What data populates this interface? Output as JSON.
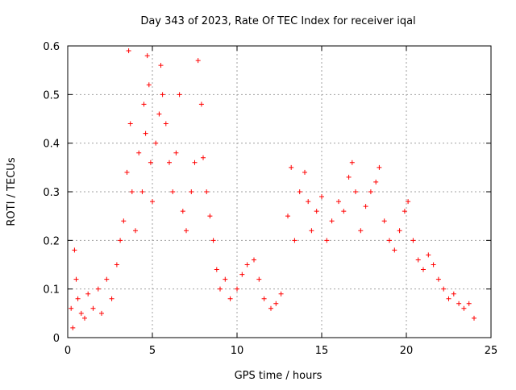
{
  "chart_data": {
    "type": "scatter",
    "title": "Day 343 of 2023, Rate Of TEC Index for receiver iqal",
    "xlabel": "GPS time / hours",
    "ylabel": "ROTI / TECUs",
    "xlim": [
      0,
      25
    ],
    "ylim": [
      0,
      0.6
    ],
    "xticks": [
      0,
      5,
      10,
      15,
      20,
      25
    ],
    "yticks": [
      0,
      0.1,
      0.2,
      0.3,
      0.4,
      0.5,
      0.6
    ],
    "xtick_labels": [
      "0",
      "5",
      "10",
      "15",
      "20",
      "25"
    ],
    "ytick_labels": [
      "0",
      "0.1",
      "0.2",
      "0.3",
      "0.4",
      "0.5",
      "0.6"
    ],
    "grid": true,
    "marker": "+",
    "series_color": "#ff0000",
    "series": [
      {
        "points": [
          [
            0.2,
            0.06
          ],
          [
            0.3,
            0.02
          ],
          [
            0.4,
            0.18
          ],
          [
            0.5,
            0.12
          ],
          [
            0.6,
            0.08
          ],
          [
            0.8,
            0.05
          ],
          [
            1.0,
            0.04
          ],
          [
            1.2,
            0.09
          ],
          [
            1.5,
            0.06
          ],
          [
            1.8,
            0.1
          ],
          [
            2.0,
            0.05
          ],
          [
            2.3,
            0.12
          ],
          [
            2.6,
            0.08
          ],
          [
            2.9,
            0.15
          ],
          [
            3.1,
            0.2
          ],
          [
            3.3,
            0.24
          ],
          [
            3.5,
            0.34
          ],
          [
            3.6,
            0.59
          ],
          [
            3.7,
            0.44
          ],
          [
            3.8,
            0.3
          ],
          [
            4.0,
            0.22
          ],
          [
            4.2,
            0.38
          ],
          [
            4.4,
            0.3
          ],
          [
            4.5,
            0.48
          ],
          [
            4.6,
            0.42
          ],
          [
            4.7,
            0.58
          ],
          [
            4.8,
            0.52
          ],
          [
            4.9,
            0.36
          ],
          [
            5.0,
            0.28
          ],
          [
            5.2,
            0.4
          ],
          [
            5.4,
            0.46
          ],
          [
            5.5,
            0.56
          ],
          [
            5.6,
            0.5
          ],
          [
            5.8,
            0.44
          ],
          [
            6.0,
            0.36
          ],
          [
            6.2,
            0.3
          ],
          [
            6.4,
            0.38
          ],
          [
            6.6,
            0.5
          ],
          [
            6.8,
            0.26
          ],
          [
            7.0,
            0.22
          ],
          [
            7.3,
            0.3
          ],
          [
            7.5,
            0.36
          ],
          [
            7.7,
            0.57
          ],
          [
            7.9,
            0.48
          ],
          [
            8.0,
            0.37
          ],
          [
            8.2,
            0.3
          ],
          [
            8.4,
            0.25
          ],
          [
            8.6,
            0.2
          ],
          [
            8.8,
            0.14
          ],
          [
            9.0,
            0.1
          ],
          [
            9.3,
            0.12
          ],
          [
            9.6,
            0.08
          ],
          [
            10.0,
            0.1
          ],
          [
            10.3,
            0.13
          ],
          [
            10.6,
            0.15
          ],
          [
            11.0,
            0.16
          ],
          [
            11.3,
            0.12
          ],
          [
            11.6,
            0.08
          ],
          [
            12.0,
            0.06
          ],
          [
            12.3,
            0.07
          ],
          [
            12.6,
            0.09
          ],
          [
            13.0,
            0.25
          ],
          [
            13.2,
            0.35
          ],
          [
            13.4,
            0.2
          ],
          [
            13.7,
            0.3
          ],
          [
            14.0,
            0.34
          ],
          [
            14.2,
            0.28
          ],
          [
            14.4,
            0.22
          ],
          [
            14.7,
            0.26
          ],
          [
            15.0,
            0.29
          ],
          [
            15.3,
            0.2
          ],
          [
            15.6,
            0.24
          ],
          [
            16.0,
            0.28
          ],
          [
            16.3,
            0.26
          ],
          [
            16.6,
            0.33
          ],
          [
            16.8,
            0.36
          ],
          [
            17.0,
            0.3
          ],
          [
            17.3,
            0.22
          ],
          [
            17.6,
            0.27
          ],
          [
            17.9,
            0.3
          ],
          [
            18.2,
            0.32
          ],
          [
            18.4,
            0.35
          ],
          [
            18.7,
            0.24
          ],
          [
            19.0,
            0.2
          ],
          [
            19.3,
            0.18
          ],
          [
            19.6,
            0.22
          ],
          [
            19.9,
            0.26
          ],
          [
            20.1,
            0.28
          ],
          [
            20.4,
            0.2
          ],
          [
            20.7,
            0.16
          ],
          [
            21.0,
            0.14
          ],
          [
            21.3,
            0.17
          ],
          [
            21.6,
            0.15
          ],
          [
            21.9,
            0.12
          ],
          [
            22.2,
            0.1
          ],
          [
            22.5,
            0.08
          ],
          [
            22.8,
            0.09
          ],
          [
            23.1,
            0.07
          ],
          [
            23.4,
            0.06
          ],
          [
            23.7,
            0.07
          ],
          [
            24.0,
            0.04
          ]
        ]
      }
    ]
  }
}
